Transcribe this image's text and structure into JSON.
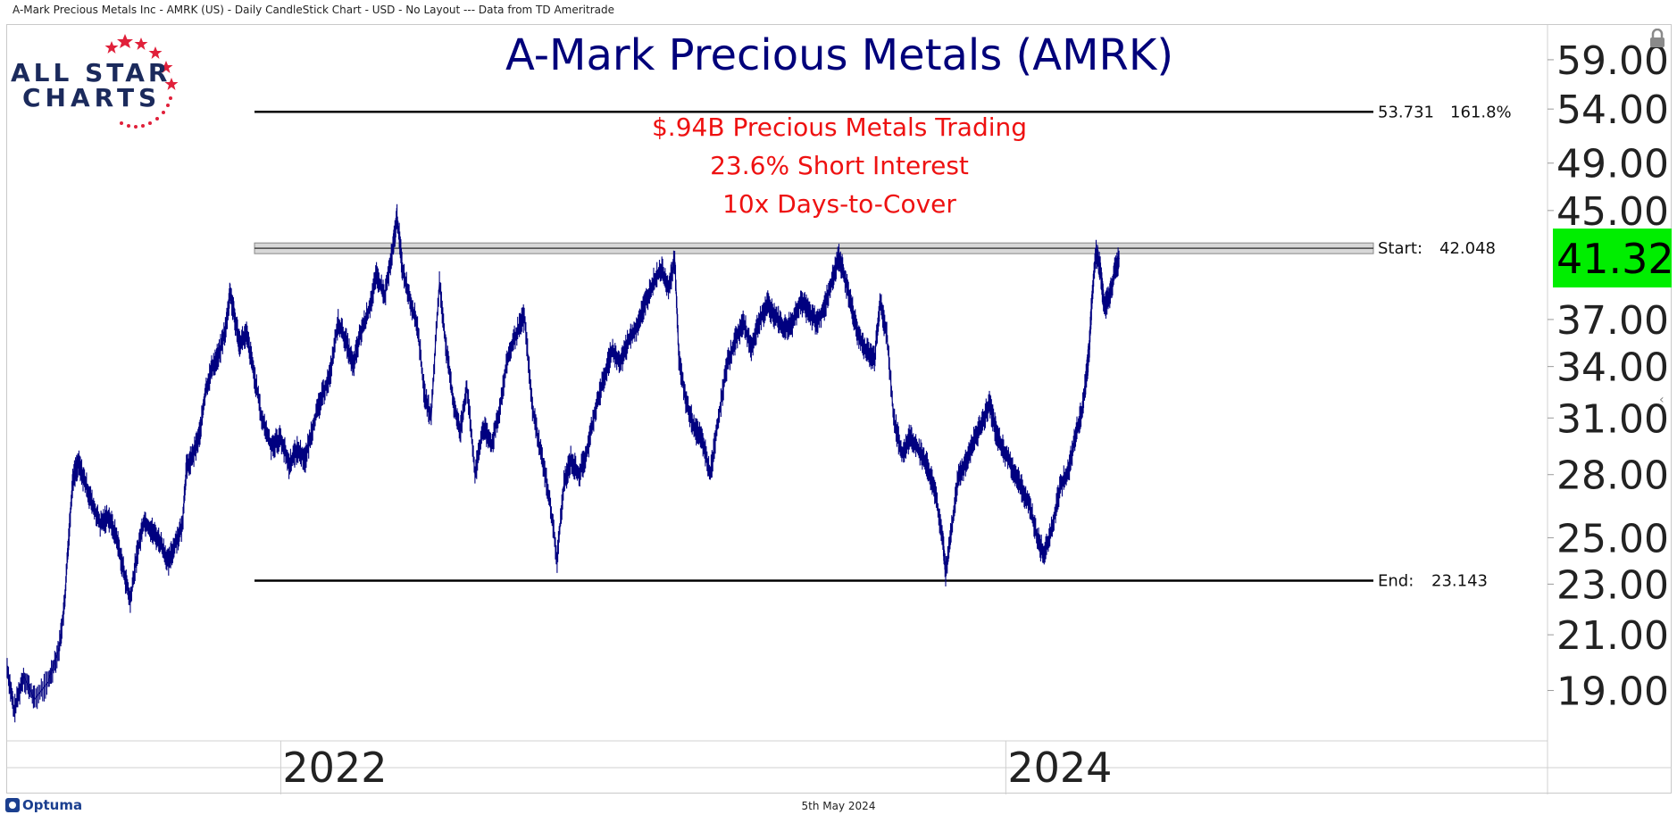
{
  "header": {
    "caption": "A-Mark Precious Metals Inc - AMRK (US) - Daily CandleStick Chart - USD - No Layout --- Data from TD Ameritrade"
  },
  "logo": {
    "line1": "ALL STAR",
    "line2": "CHARTS",
    "star_color": "#e0203a",
    "text_color": "#1b2a5c"
  },
  "footer": {
    "date": "5th May 2024",
    "brand": "Optuma"
  },
  "colors": {
    "price_line": "#000080",
    "title": "#00007a",
    "annotation": "#ee1111",
    "last_price_bg": "#00ee00"
  },
  "chart_data": {
    "type": "line",
    "title": "A-Mark Precious Metals (AMRK)",
    "annotations": [
      "$.94B Precious Metals Trading",
      "23.6% Short Interest",
      "10x Days-to-Cover"
    ],
    "x_tick_labels": [
      {
        "label": "2022",
        "t": 0.2
      },
      {
        "label": "2024",
        "t": 0.73
      }
    ],
    "y_tick_labels": [
      "59.00",
      "54.00",
      "49.00",
      "45.00",
      "37.00",
      "34.00",
      "31.00",
      "28.00",
      "25.00",
      "23.00",
      "21.00",
      "19.00"
    ],
    "y_ticks": [
      59,
      54,
      49,
      45,
      37,
      34,
      31,
      28,
      25,
      23,
      21,
      19
    ],
    "y_scale": "log",
    "ylim": [
      17.3,
      62
    ],
    "last_price": {
      "label": "41.32",
      "value": 41.32
    },
    "levels": [
      {
        "value": 53.731,
        "label_value": "53.731",
        "label_extra": "161.8%",
        "style": "line"
      },
      {
        "value": 42.048,
        "label_prefix": "Start:",
        "label_value": "42.048",
        "style": "band"
      },
      {
        "value": 23.143,
        "label_prefix": "End:",
        "label_value": "23.143",
        "style": "line"
      }
    ],
    "series": [
      {
        "points": [
          [
            0.0,
            19.8
          ],
          [
            0.005,
            18.3
          ],
          [
            0.012,
            19.5
          ],
          [
            0.02,
            18.7
          ],
          [
            0.03,
            19.3
          ],
          [
            0.038,
            20.5
          ],
          [
            0.042,
            22.2
          ],
          [
            0.045,
            25.0
          ],
          [
            0.048,
            27.8
          ],
          [
            0.052,
            28.6
          ],
          [
            0.057,
            27.6
          ],
          [
            0.062,
            26.6
          ],
          [
            0.068,
            25.6
          ],
          [
            0.074,
            26.0
          ],
          [
            0.08,
            25.0
          ],
          [
            0.085,
            23.6
          ],
          [
            0.09,
            22.3
          ],
          [
            0.095,
            24.3
          ],
          [
            0.1,
            25.8
          ],
          [
            0.106,
            25.3
          ],
          [
            0.112,
            24.8
          ],
          [
            0.118,
            23.9
          ],
          [
            0.123,
            24.8
          ],
          [
            0.128,
            25.5
          ],
          [
            0.131,
            28.3
          ],
          [
            0.136,
            29.0
          ],
          [
            0.141,
            30.2
          ],
          [
            0.145,
            32.5
          ],
          [
            0.15,
            34.0
          ],
          [
            0.155,
            34.8
          ],
          [
            0.16,
            36.5
          ],
          [
            0.163,
            38.9
          ],
          [
            0.166,
            37.2
          ],
          [
            0.17,
            35.5
          ],
          [
            0.175,
            36.0
          ],
          [
            0.18,
            33.8
          ],
          [
            0.186,
            31.0
          ],
          [
            0.193,
            29.5
          ],
          [
            0.2,
            29.9
          ],
          [
            0.206,
            28.5
          ],
          [
            0.212,
            29.3
          ],
          [
            0.218,
            28.8
          ],
          [
            0.224,
            30.7
          ],
          [
            0.23,
            32.2
          ],
          [
            0.236,
            33.5
          ],
          [
            0.242,
            36.8
          ],
          [
            0.248,
            35.5
          ],
          [
            0.253,
            34.0
          ],
          [
            0.258,
            36.0
          ],
          [
            0.264,
            37.5
          ],
          [
            0.27,
            40.0
          ],
          [
            0.276,
            38.6
          ],
          [
            0.282,
            42.0
          ],
          [
            0.285,
            44.5
          ],
          [
            0.289,
            40.5
          ],
          [
            0.295,
            38.2
          ],
          [
            0.3,
            36.5
          ],
          [
            0.305,
            32.3
          ],
          [
            0.31,
            31.0
          ],
          [
            0.316,
            39.5
          ],
          [
            0.321,
            35.0
          ],
          [
            0.326,
            32.0
          ],
          [
            0.331,
            30.2
          ],
          [
            0.336,
            32.8
          ],
          [
            0.342,
            28.0
          ],
          [
            0.348,
            30.5
          ],
          [
            0.354,
            29.5
          ],
          [
            0.36,
            31.5
          ],
          [
            0.366,
            34.5
          ],
          [
            0.372,
            36.0
          ],
          [
            0.378,
            37.2
          ],
          [
            0.384,
            31.5
          ],
          [
            0.39,
            29.2
          ],
          [
            0.396,
            27.0
          ],
          [
            0.402,
            24.0
          ],
          [
            0.407,
            27.5
          ],
          [
            0.412,
            28.8
          ],
          [
            0.418,
            28.0
          ],
          [
            0.424,
            29.2
          ],
          [
            0.43,
            31.5
          ],
          [
            0.436,
            33.2
          ],
          [
            0.442,
            35.0
          ],
          [
            0.448,
            34.2
          ],
          [
            0.454,
            35.6
          ],
          [
            0.46,
            36.5
          ],
          [
            0.466,
            38.0
          ],
          [
            0.472,
            39.5
          ],
          [
            0.478,
            40.5
          ],
          [
            0.484,
            39.2
          ],
          [
            0.488,
            41.2
          ],
          [
            0.491,
            34.5
          ],
          [
            0.496,
            32.0
          ],
          [
            0.502,
            30.5
          ],
          [
            0.508,
            29.8
          ],
          [
            0.514,
            28.0
          ],
          [
            0.52,
            31.0
          ],
          [
            0.526,
            34.0
          ],
          [
            0.532,
            35.6
          ],
          [
            0.538,
            36.8
          ],
          [
            0.544,
            35.2
          ],
          [
            0.55,
            37.0
          ],
          [
            0.556,
            38.0
          ],
          [
            0.562,
            37.2
          ],
          [
            0.568,
            36.4
          ],
          [
            0.574,
            36.8
          ],
          [
            0.58,
            38.3
          ],
          [
            0.586,
            37.5
          ],
          [
            0.592,
            36.8
          ],
          [
            0.598,
            38.0
          ],
          [
            0.604,
            40.0
          ],
          [
            0.608,
            41.4
          ],
          [
            0.612,
            40.0
          ],
          [
            0.617,
            38.0
          ],
          [
            0.622,
            36.0
          ],
          [
            0.628,
            35.0
          ],
          [
            0.634,
            34.5
          ],
          [
            0.638,
            38.2
          ],
          [
            0.643,
            36.0
          ],
          [
            0.648,
            31.0
          ],
          [
            0.654,
            29.0
          ],
          [
            0.66,
            30.0
          ],
          [
            0.666,
            29.3
          ],
          [
            0.672,
            28.6
          ],
          [
            0.678,
            27.2
          ],
          [
            0.684,
            25.0
          ],
          [
            0.686,
            23.4
          ],
          [
            0.69,
            25.2
          ],
          [
            0.695,
            27.8
          ],
          [
            0.7,
            28.5
          ],
          [
            0.706,
            29.7
          ],
          [
            0.712,
            30.6
          ],
          [
            0.718,
            31.8
          ],
          [
            0.723,
            30.2
          ],
          [
            0.729,
            29.2
          ],
          [
            0.735,
            28.3
          ],
          [
            0.741,
            27.4
          ],
          [
            0.747,
            26.6
          ],
          [
            0.753,
            25.0
          ],
          [
            0.758,
            24.2
          ],
          [
            0.764,
            25.5
          ],
          [
            0.77,
            27.5
          ],
          [
            0.776,
            28.2
          ],
          [
            0.781,
            30.0
          ],
          [
            0.786,
            31.5
          ],
          [
            0.789,
            33.5
          ],
          [
            0.791,
            35.0
          ],
          [
            0.793,
            38.6
          ],
          [
            0.796,
            41.8
          ],
          [
            0.799,
            40.5
          ],
          [
            0.802,
            37.8
          ],
          [
            0.806,
            38.6
          ],
          [
            0.81,
            40.5
          ],
          [
            0.813,
            41.32
          ]
        ]
      }
    ]
  }
}
